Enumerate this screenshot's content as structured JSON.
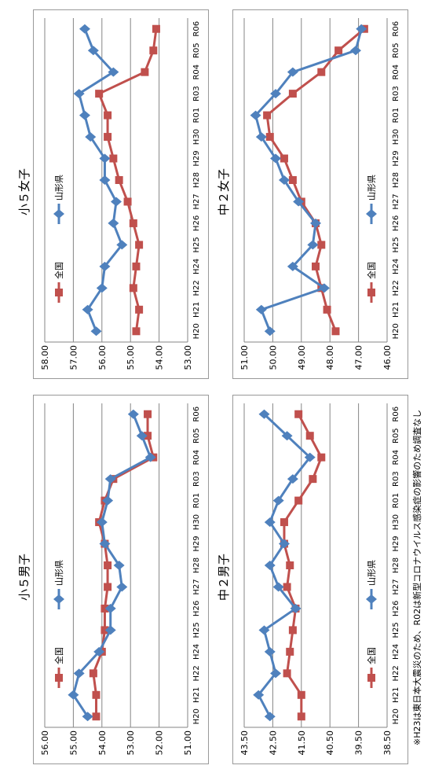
{
  "colors": {
    "national": "#c0504d",
    "prefecture": "#4f81bd",
    "grid": "#868686"
  },
  "years": [
    "H20",
    "H21",
    "H22",
    "H24",
    "H25",
    "H26",
    "H27",
    "H28",
    "H29",
    "H30",
    "R01",
    "R03",
    "R04",
    "R05",
    "R06"
  ],
  "chart_data": [
    {
      "type": "line",
      "title": "小５男子",
      "ylim": [
        51.0,
        56.0
      ],
      "yticks": [
        "51.00",
        "52.00",
        "53.00",
        "54.00",
        "55.00",
        "56.00"
      ],
      "categories": [
        "H20",
        "H21",
        "H22",
        "H24",
        "H25",
        "H26",
        "H27",
        "H28",
        "H29",
        "H30",
        "R01",
        "R03",
        "R04",
        "R05",
        "R06"
      ],
      "legend_placement": "top",
      "series": [
        {
          "name": "全国",
          "values": [
            54.2,
            54.2,
            54.3,
            54.0,
            53.9,
            53.9,
            53.8,
            53.8,
            53.9,
            54.1,
            53.9,
            53.6,
            52.2,
            52.4,
            52.4
          ]
        },
        {
          "name": "山形県",
          "values": [
            54.5,
            55.0,
            54.8,
            54.1,
            53.7,
            53.7,
            53.3,
            53.4,
            53.9,
            54.0,
            53.8,
            53.7,
            52.3,
            52.6,
            52.9
          ]
        }
      ]
    },
    {
      "type": "line",
      "title": "小５女子",
      "ylim": [
        53.0,
        58.0
      ],
      "yticks": [
        "53.00",
        "54.00",
        "55.00",
        "56.00",
        "57.00",
        "58.00"
      ],
      "categories": [
        "H20",
        "H21",
        "H22",
        "H24",
        "H25",
        "H26",
        "H27",
        "H28",
        "H29",
        "H30",
        "R01",
        "R03",
        "R04",
        "R05",
        "R06"
      ],
      "legend_placement": "top",
      "series": [
        {
          "name": "全国",
          "values": [
            54.8,
            54.7,
            54.9,
            54.8,
            54.7,
            54.9,
            55.1,
            55.4,
            55.6,
            55.8,
            55.8,
            56.1,
            54.5,
            54.2,
            54.1
          ]
        },
        {
          "name": "山形県",
          "values": [
            56.2,
            56.5,
            56.0,
            55.9,
            55.3,
            55.6,
            55.5,
            55.9,
            55.9,
            56.4,
            56.6,
            56.8,
            55.6,
            56.3,
            56.6
          ]
        }
      ]
    },
    {
      "type": "line",
      "title": "中２男子",
      "ylim": [
        38.5,
        43.5
      ],
      "yticks": [
        "38.50",
        "39.50",
        "40.50",
        "41.50",
        "42.50",
        "43.50"
      ],
      "categories": [
        "H20",
        "H21",
        "H22",
        "H24",
        "H25",
        "H26",
        "H27",
        "H28",
        "H29",
        "H30",
        "R01",
        "R03",
        "R04",
        "R05",
        "R06"
      ],
      "legend_placement": "bottom",
      "series": [
        {
          "name": "全国",
          "values": [
            41.5,
            41.5,
            42.0,
            41.9,
            41.8,
            41.7,
            42.0,
            41.9,
            42.1,
            42.1,
            41.6,
            41.1,
            40.8,
            41.2,
            41.6
          ]
        },
        {
          "name": "山形県",
          "values": [
            42.6,
            43.0,
            42.4,
            42.6,
            42.8,
            41.7,
            42.3,
            42.6,
            42.1,
            42.6,
            42.3,
            41.8,
            41.2,
            42.0,
            42.8
          ]
        }
      ]
    },
    {
      "type": "line",
      "title": "中２女子",
      "ylim": [
        46.0,
        51.0
      ],
      "yticks": [
        "46.00",
        "47.00",
        "48.00",
        "49.00",
        "50.00",
        "51.00"
      ],
      "categories": [
        "H20",
        "H21",
        "H22",
        "H24",
        "H25",
        "H26",
        "H27",
        "H28",
        "H29",
        "H30",
        "R01",
        "R03",
        "R04",
        "R05",
        "R06"
      ],
      "legend_placement": "bottom",
      "series": [
        {
          "name": "全国",
          "values": [
            47.8,
            48.1,
            48.3,
            48.5,
            48.3,
            48.5,
            49.0,
            49.3,
            49.6,
            50.1,
            50.2,
            49.3,
            48.3,
            47.7,
            46.8
          ]
        },
        {
          "name": "山形県",
          "values": [
            50.1,
            50.4,
            48.2,
            49.3,
            48.6,
            48.5,
            49.1,
            49.6,
            49.9,
            50.4,
            50.6,
            49.9,
            49.3,
            47.1,
            46.9
          ]
        }
      ]
    }
  ],
  "footnote": "※H23は東日本大震災のため、R02は新型コロナウイルス感染症の影響のため調査なし"
}
